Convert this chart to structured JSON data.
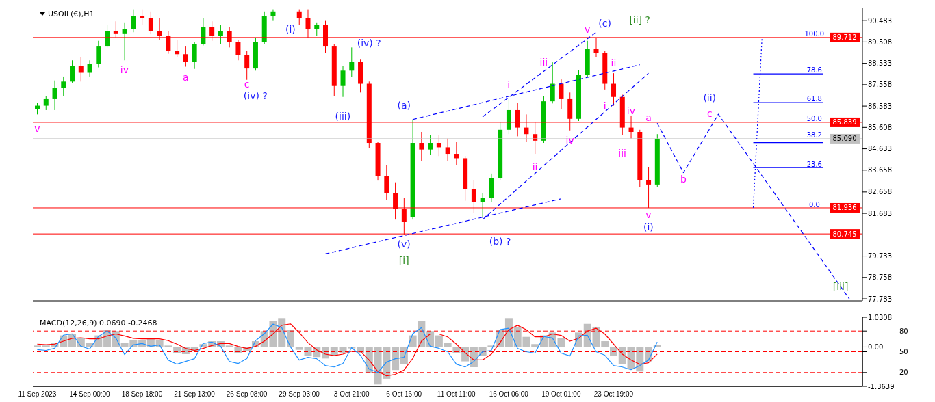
{
  "chart_data": [
    {
      "type": "candlestick",
      "title": "USOIL(€),H1",
      "tick_labels": "y",
      "categories": [
        null,
        null,
        null,
        null,
        null,
        null,
        null,
        null,
        null,
        null,
        null,
        null,
        null,
        null,
        null,
        null,
        null,
        null,
        null,
        null,
        null,
        null,
        null,
        null,
        null,
        null,
        null,
        null,
        null,
        null,
        null,
        null,
        null,
        null,
        null,
        null,
        null,
        null,
        null,
        null,
        null,
        null,
        null,
        null,
        null,
        null,
        null,
        null,
        null,
        null,
        null,
        null,
        null,
        null,
        null,
        null,
        null,
        null,
        null,
        null,
        null,
        null,
        null,
        null,
        null,
        null,
        null,
        null,
        null,
        null,
        null,
        null,
        null,
        null,
        null,
        null,
        null,
        null,
        null,
        null,
        null,
        null,
        null,
        null,
        null,
        null,
        null,
        null,
        null,
        null,
        null,
        null,
        null,
        null,
        null
      ],
      "ohlc": [
        [
          86.45,
          86.74,
          86.2,
          86.6
        ],
        [
          86.6,
          87.04,
          86.4,
          86.9
        ],
        [
          86.9,
          87.75,
          86.4,
          87.4
        ],
        [
          87.4,
          87.93,
          87.04,
          87.7
        ],
        [
          87.7,
          88.67,
          87.65,
          88.4
        ],
        [
          88.4,
          88.82,
          87.7,
          88.1
        ],
        [
          88.1,
          88.67,
          87.93,
          88.5
        ],
        [
          88.5,
          89.56,
          88.35,
          89.3
        ],
        [
          89.3,
          90.3,
          89.25,
          90.0
        ],
        [
          90.0,
          90.45,
          89.71,
          89.9
        ],
        [
          89.9,
          90.4,
          88.67,
          90.1
        ],
        [
          90.1,
          91.0,
          89.95,
          90.7
        ],
        [
          90.7,
          91.0,
          90.3,
          90.6
        ],
        [
          90.6,
          90.9,
          89.86,
          90.0
        ],
        [
          90.0,
          90.6,
          89.6,
          89.8
        ],
        [
          89.8,
          90.01,
          88.97,
          89.1
        ],
        [
          89.1,
          89.6,
          88.82,
          88.95
        ],
        [
          88.95,
          89.3,
          88.38,
          88.6
        ],
        [
          88.6,
          89.5,
          88.28,
          89.4
        ],
        [
          89.4,
          90.6,
          89.35,
          90.2
        ],
        [
          90.2,
          90.45,
          89.56,
          89.8
        ],
        [
          89.8,
          90.3,
          89.41,
          90.0
        ],
        [
          90.0,
          90.2,
          89.26,
          89.5
        ],
        [
          89.5,
          89.6,
          88.67,
          88.9
        ],
        [
          88.9,
          89.1,
          87.78,
          88.3
        ],
        [
          88.3,
          89.71,
          88.2,
          89.5
        ],
        [
          89.5,
          90.9,
          89.4,
          90.7
        ],
        [
          90.7,
          91.0,
          90.5,
          90.9
        ],
        null,
        null,
        [
          90.9,
          91.0,
          90.3,
          90.6
        ],
        [
          90.6,
          91.0,
          89.7,
          90.1
        ],
        [
          90.1,
          90.4,
          89.8,
          90.3
        ],
        [
          90.3,
          90.5,
          89.0,
          89.3
        ],
        [
          89.3,
          89.4,
          87.04,
          87.5
        ],
        [
          87.5,
          88.4,
          87.0,
          88.2
        ],
        [
          88.2,
          89.26,
          87.9,
          88.6
        ],
        [
          88.6,
          88.7,
          87.2,
          87.6
        ],
        [
          87.6,
          87.7,
          84.67,
          84.9
        ],
        [
          84.9,
          84.95,
          83.18,
          83.4
        ],
        [
          83.4,
          83.9,
          82.29,
          82.6
        ],
        [
          82.6,
          83.1,
          81.4,
          81.9
        ],
        [
          81.9,
          82.4,
          80.72,
          81.3
        ],
        [
          81.5,
          85.97,
          81.4,
          84.9
        ],
        [
          84.9,
          85.4,
          84.07,
          84.6
        ],
        [
          84.6,
          85.26,
          84.37,
          84.9
        ],
        [
          84.9,
          85.26,
          84.3,
          84.7
        ],
        [
          84.7,
          85.1,
          84.07,
          84.4
        ],
        [
          84.4,
          84.96,
          83.9,
          84.2
        ],
        [
          84.2,
          84.3,
          82.26,
          82.8
        ],
        [
          82.8,
          83.2,
          81.7,
          82.2
        ],
        [
          82.2,
          82.59,
          81.5,
          82.4
        ],
        [
          82.4,
          83.5,
          82.2,
          83.3
        ],
        [
          83.3,
          85.85,
          83.2,
          85.5
        ],
        [
          85.5,
          86.9,
          85.3,
          86.4
        ],
        [
          86.4,
          86.74,
          85.2,
          85.6
        ],
        [
          85.6,
          86.2,
          84.96,
          85.3
        ],
        [
          85.3,
          85.85,
          84.4,
          85.0
        ],
        [
          85.0,
          87.04,
          84.9,
          86.8
        ],
        [
          86.8,
          88.58,
          86.7,
          87.6
        ],
        [
          87.6,
          87.8,
          86.45,
          86.9
        ],
        [
          86.9,
          87.2,
          85.47,
          86.0
        ],
        [
          86.0,
          88.23,
          85.9,
          88.0
        ],
        [
          88.0,
          89.56,
          87.9,
          89.2
        ],
        [
          89.2,
          89.71,
          88.82,
          89.0
        ],
        [
          89.0,
          89.1,
          87.34,
          87.6
        ],
        [
          87.6,
          88.08,
          86.6,
          87.0
        ],
        [
          87.0,
          87.1,
          85.26,
          85.6
        ],
        [
          85.6,
          86.15,
          85.1,
          85.4
        ],
        [
          85.4,
          85.5,
          82.89,
          83.2
        ],
        [
          83.2,
          83.8,
          81.936,
          83.0
        ],
        [
          83.0,
          85.3,
          82.9,
          85.09
        ],
        null,
        null,
        null,
        null,
        null,
        null,
        null,
        null,
        null,
        null,
        null,
        null,
        null,
        null,
        null,
        null,
        null,
        null,
        null,
        null,
        null,
        null,
        null
      ],
      "colors": [
        "#00c000",
        "#00c000",
        "#00c000",
        "#00c000",
        "#00c000",
        "#ff0000",
        "#00c000",
        "#00c000",
        "#00c000",
        "#ff0000",
        "#00c000",
        "#00c000",
        "#ff0000",
        "#ff0000",
        "#ff0000",
        "#ff0000",
        "#ff0000",
        "#ff0000",
        "#00c000",
        "#00c000",
        "#ff0000",
        "#00c000",
        "#ff0000",
        "#ff0000",
        "#ff0000",
        "#00c000",
        "#00c000",
        "#00c000",
        null,
        null,
        "#ff0000",
        "#ff0000",
        "#00c000",
        "#ff0000",
        "#ff0000",
        "#00c000",
        "#00c000",
        "#ff0000",
        "#ff0000",
        "#ff0000",
        "#ff0000",
        "#ff0000",
        "#ff0000",
        "#00c000",
        "#ff0000",
        "#00c000",
        "#ff0000",
        "#ff0000",
        "#ff0000",
        "#ff0000",
        "#ff0000",
        "#00c000",
        "#00c000",
        "#00c000",
        "#00c000",
        "#ff0000",
        "#ff0000",
        "#ff0000",
        "#00c000",
        "#00c000",
        "#ff0000",
        "#ff0000",
        "#00c000",
        "#00c000",
        "#ff0000",
        "#ff0000",
        "#ff0000",
        "#ff0000",
        "#ff0000",
        "#ff0000",
        "#ff0000",
        "#00c000",
        null,
        null,
        null,
        null,
        null,
        null,
        null,
        null,
        null,
        null,
        null,
        null,
        null,
        null,
        null,
        null,
        null,
        null,
        null,
        null,
        null,
        null,
        null
      ],
      "series": [
        {
          "type": "line",
          "color": "#0000ff",
          "line_style": "dashed",
          "values": [
            null,
            null,
            null,
            null,
            null,
            null,
            null,
            null,
            null,
            null,
            null,
            null,
            null,
            null,
            null,
            null,
            null,
            null,
            null,
            null,
            null,
            null,
            null,
            null,
            null,
            null,
            null,
            null,
            null,
            null,
            null,
            null,
            null,
            79.83,
            null,
            null,
            null,
            null,
            null,
            null,
            null,
            null,
            null,
            null,
            null,
            null,
            null,
            null,
            null,
            null,
            null,
            null,
            null,
            null,
            null,
            null,
            null,
            null,
            null,
            null,
            82.35,
            null,
            null,
            null,
            null,
            null,
            null,
            null,
            null,
            null,
            null,
            null,
            null,
            null,
            null,
            null,
            null,
            null,
            null,
            null,
            null,
            null,
            null,
            null,
            null,
            null,
            null,
            null,
            null,
            null,
            null,
            null,
            null,
            null,
            null
          ]
        },
        {
          "type": "line",
          "color": "#0000ff",
          "line_style": "dashed",
          "values": [
            null,
            null,
            null,
            null,
            null,
            null,
            null,
            null,
            null,
            null,
            null,
            null,
            null,
            null,
            null,
            null,
            null,
            null,
            null,
            null,
            null,
            null,
            null,
            null,
            null,
            null,
            null,
            null,
            null,
            null,
            null,
            null,
            null,
            null,
            null,
            null,
            null,
            null,
            null,
            null,
            null,
            null,
            null,
            85.97,
            null,
            null,
            null,
            null,
            null,
            null,
            null,
            null,
            null,
            null,
            null,
            null,
            null,
            null,
            null,
            null,
            null,
            null,
            null,
            null,
            null,
            null,
            null,
            null,
            null,
            88.47,
            null,
            null,
            null,
            null,
            null,
            null,
            null,
            null,
            null,
            null,
            null,
            null,
            null,
            null,
            null,
            null,
            null,
            null,
            null,
            null,
            null,
            null,
            null,
            null,
            null
          ]
        },
        {
          "type": "line",
          "color": "#0000ff",
          "line_style": "dashed",
          "values": [
            null,
            null,
            null,
            null,
            null,
            null,
            null,
            null,
            null,
            null,
            null,
            null,
            null,
            null,
            null,
            null,
            null,
            null,
            null,
            null,
            null,
            null,
            null,
            null,
            null,
            null,
            null,
            null,
            null,
            null,
            null,
            null,
            null,
            null,
            null,
            null,
            null,
            null,
            null,
            null,
            null,
            null,
            null,
            null,
            null,
            null,
            null,
            null,
            null,
            null,
            null,
            81.4,
            null,
            null,
            null,
            null,
            null,
            null,
            null,
            null,
            null,
            null,
            null,
            null,
            null,
            null,
            null,
            null,
            null,
            null,
            88.08,
            null,
            null,
            null,
            null,
            null,
            null,
            null,
            null,
            null,
            null,
            null,
            null,
            null,
            null,
            null,
            null,
            null,
            null,
            null,
            null,
            null,
            null,
            null,
            null
          ]
        },
        {
          "type": "line",
          "color": "#0000ff",
          "line_style": "dashed",
          "values": [
            null,
            null,
            null,
            null,
            null,
            null,
            null,
            null,
            null,
            null,
            null,
            null,
            null,
            null,
            null,
            null,
            null,
            null,
            null,
            null,
            null,
            null,
            null,
            null,
            null,
            null,
            null,
            null,
            null,
            null,
            null,
            null,
            null,
            null,
            null,
            null,
            null,
            null,
            null,
            null,
            null,
            null,
            null,
            null,
            null,
            null,
            null,
            null,
            null,
            null,
            null,
            86.09,
            null,
            null,
            null,
            null,
            null,
            null,
            null,
            null,
            null,
            null,
            null,
            null,
            89.95,
            null,
            null,
            null,
            null,
            null,
            null,
            null,
            null,
            null,
            null,
            null,
            null,
            null,
            null,
            null,
            null,
            null,
            null,
            null,
            null,
            null,
            null,
            null,
            null,
            null,
            null,
            null,
            null,
            null,
            null
          ]
        },
        {
          "type": "line",
          "color": "#0000ff",
          "line_style": "dashed",
          "values": [
            null,
            null,
            null,
            null,
            null,
            null,
            null,
            null,
            null,
            null,
            null,
            null,
            null,
            null,
            null,
            null,
            null,
            null,
            null,
            null,
            null,
            null,
            null,
            null,
            null,
            null,
            null,
            null,
            null,
            null,
            null,
            null,
            null,
            null,
            null,
            null,
            null,
            null,
            null,
            null,
            null,
            null,
            null,
            null,
            null,
            null,
            null,
            null,
            null,
            null,
            null,
            null,
            null,
            null,
            null,
            null,
            null,
            null,
            null,
            null,
            null,
            null,
            null,
            null,
            null,
            null,
            null,
            null,
            null,
            null,
            null,
            85.8,
            null,
            null,
            83.54,
            null,
            null,
            null,
            86.21,
            null,
            null,
            null,
            null,
            null,
            null,
            null,
            null,
            null,
            null,
            null,
            null,
            null,
            null,
            77.78,
            null
          ]
        },
        {
          "type": "line",
          "color": "#0000ff",
          "line_style": "dotted",
          "values": [
            null,
            null,
            null,
            null,
            null,
            null,
            null,
            null,
            null,
            null,
            null,
            null,
            null,
            null,
            null,
            null,
            null,
            null,
            null,
            null,
            null,
            null,
            null,
            null,
            null,
            null,
            null,
            null,
            null,
            null,
            null,
            null,
            null,
            null,
            null,
            null,
            null,
            null,
            null,
            null,
            null,
            null,
            null,
            null,
            null,
            null,
            null,
            null,
            null,
            null,
            null,
            null,
            null,
            null,
            null,
            null,
            null,
            null,
            null,
            null,
            null,
            null,
            null,
            null,
            null,
            null,
            null,
            null,
            null,
            null,
            null,
            null,
            null,
            null,
            null,
            null,
            null,
            null,
            null,
            null,
            null,
            null,
            81.94,
            89.71,
            null,
            null,
            null,
            null,
            null,
            null,
            null,
            null,
            null,
            null,
            null
          ]
        },
        {
          "type": "line",
          "color": "#0000ff",
          "line_style": "solid",
          "values": [
            null,
            null,
            null,
            null,
            null,
            null,
            null,
            null,
            null,
            null,
            null,
            null,
            null,
            null,
            null,
            null,
            null,
            null,
            null,
            null,
            null,
            null,
            null,
            null,
            null,
            null,
            null,
            null,
            null,
            null,
            null,
            null,
            null,
            null,
            null,
            null,
            null,
            null,
            null,
            null,
            null,
            null,
            null,
            null,
            null,
            null,
            null,
            null,
            null,
            null,
            null,
            null,
            null,
            null,
            null,
            null,
            null,
            null,
            null,
            null,
            null,
            null,
            null,
            null,
            null,
            null,
            null,
            null,
            null,
            null,
            null,
            null,
            null,
            null,
            null,
            null,
            null,
            null,
            null,
            null,
            null,
            null,
            88.05,
            null,
            null,
            null,
            null,
            null,
            null,
            null,
            88.05,
            null,
            null,
            null,
            null
          ]
        },
        {
          "type": "line",
          "color": "#0000ff",
          "line_style": "solid",
          "values": [
            null,
            null,
            null,
            null,
            null,
            null,
            null,
            null,
            null,
            null,
            null,
            null,
            null,
            null,
            null,
            null,
            null,
            null,
            null,
            null,
            null,
            null,
            null,
            null,
            null,
            null,
            null,
            null,
            null,
            null,
            null,
            null,
            null,
            null,
            null,
            null,
            null,
            null,
            null,
            null,
            null,
            null,
            null,
            null,
            null,
            null,
            null,
            null,
            null,
            null,
            null,
            null,
            null,
            null,
            null,
            null,
            null,
            null,
            null,
            null,
            null,
            null,
            null,
            null,
            null,
            null,
            null,
            null,
            null,
            null,
            null,
            null,
            null,
            null,
            null,
            null,
            null,
            null,
            null,
            null,
            null,
            null,
            86.74,
            null,
            null,
            null,
            null,
            null,
            null,
            null,
            86.74,
            null,
            null,
            null,
            null
          ]
        },
        {
          "type": "line",
          "color": "#0000ff",
          "line_style": "solid",
          "values": [
            null,
            null,
            null,
            null,
            null,
            null,
            null,
            null,
            null,
            null,
            null,
            null,
            null,
            null,
            null,
            null,
            null,
            null,
            null,
            null,
            null,
            null,
            null,
            null,
            null,
            null,
            null,
            null,
            null,
            null,
            null,
            null,
            null,
            null,
            null,
            null,
            null,
            null,
            null,
            null,
            null,
            null,
            null,
            null,
            null,
            null,
            null,
            null,
            null,
            null,
            null,
            null,
            null,
            null,
            null,
            null,
            null,
            null,
            null,
            null,
            null,
            null,
            null,
            null,
            null,
            null,
            null,
            null,
            null,
            null,
            null,
            null,
            null,
            null,
            null,
            null,
            null,
            null,
            null,
            null,
            null,
            null,
            84.91,
            null,
            null,
            null,
            null,
            null,
            null,
            null,
            84.91,
            null,
            null,
            null,
            null
          ]
        },
        {
          "type": "line",
          "color": "#0000ff",
          "line_style": "solid",
          "values": [
            null,
            null,
            null,
            null,
            null,
            null,
            null,
            null,
            null,
            null,
            null,
            null,
            null,
            null,
            null,
            null,
            null,
            null,
            null,
            null,
            null,
            null,
            null,
            null,
            null,
            null,
            null,
            null,
            null,
            null,
            null,
            null,
            null,
            null,
            null,
            null,
            null,
            null,
            null,
            null,
            null,
            null,
            null,
            null,
            null,
            null,
            null,
            null,
            null,
            null,
            null,
            null,
            null,
            null,
            null,
            null,
            null,
            null,
            null,
            null,
            null,
            null,
            null,
            null,
            null,
            null,
            null,
            null,
            null,
            null,
            null,
            null,
            null,
            null,
            null,
            null,
            null,
            null,
            null,
            null,
            null,
            null,
            83.77,
            null,
            null,
            null,
            null,
            null,
            null,
            null,
            83.77,
            null,
            null,
            null,
            null
          ]
        }
      ],
      "ylim": [
        77.69,
        91.05
      ],
      "yticks": [
        90.483,
        89.508,
        88.533,
        87.558,
        86.583,
        85.608,
        84.633,
        83.658,
        82.658,
        81.683,
        79.733,
        78.758,
        77.783
      ],
      "ref_lines": [
        {
          "axis": "y",
          "value": 89.712,
          "label": "89.712",
          "color": "#ff0000"
        },
        {
          "axis": "y",
          "value": 85.839,
          "label": "85.839",
          "color": "#ff0000"
        },
        {
          "axis": "y",
          "value": 81.936,
          "label": "81.936",
          "color": "#ff0000"
        },
        {
          "axis": "y",
          "value": 80.745,
          "label": "80.745",
          "color": "#ff0000"
        },
        {
          "axis": "y",
          "value": 85.09,
          "label": "85.090",
          "color": "#c0c0c0"
        }
      ],
      "annotations": [
        "v",
        "iv",
        "a",
        "c",
        "(iv) ?",
        "(i)",
        "(iv) ?",
        "(iii)",
        "(a)",
        "(v)",
        "[i]",
        "i",
        "iii",
        "ii",
        "iv",
        "(b) ?",
        "v",
        "(c)",
        "[ii] ?",
        "ii",
        "i",
        "iv",
        "iii",
        "a",
        "v",
        "(i)",
        "b",
        "c",
        "(ii)",
        "[iii]",
        "100.0",
        "78.6",
        "61.8",
        "50.0",
        "38.2",
        "23.6",
        "0.0"
      ]
    },
    {
      "type": "bar",
      "title": "MACD(12,26,9) 0.0690 -0.2468",
      "categories": [
        "11 Sep 2023",
        null,
        null,
        null,
        null,
        null,
        "14 Sep 00:00",
        null,
        null,
        null,
        null,
        null,
        "18 Sep 18:00",
        null,
        null,
        null,
        null,
        null,
        "21 Sep 13:00",
        null,
        null,
        null,
        null,
        null,
        "26 Sep 08:00",
        null,
        null,
        null,
        null,
        null,
        "29 Sep 03:00",
        null,
        null,
        null,
        null,
        null,
        "3 Oct 21:00",
        null,
        null,
        null,
        null,
        null,
        "6 Oct 16:00",
        null,
        null,
        null,
        null,
        null,
        "11 Oct 11:00",
        null,
        null,
        null,
        null,
        null,
        "16 Oct 06:00",
        null,
        null,
        null,
        null,
        null,
        "19 Oct 01:00",
        null,
        null,
        null,
        null,
        null,
        "23 Oct 19:00",
        null,
        null,
        null,
        null,
        null,
        null,
        null,
        null,
        null,
        null,
        null,
        null,
        null,
        null,
        null,
        null,
        null,
        null,
        null,
        null,
        null,
        null,
        null,
        null,
        null,
        null,
        null,
        null
      ],
      "series": [
        {
          "type": "bar",
          "color": "#c0c0c0",
          "values": [
            0.05,
            0.05,
            0.15,
            0.4,
            0.45,
            0.3,
            0.15,
            0.4,
            0.6,
            0.55,
            0.15,
            0.25,
            0.25,
            0.3,
            0.25,
            0.05,
            -0.2,
            -0.25,
            -0.15,
            0.1,
            0.2,
            0.2,
            0.05,
            -0.2,
            -0.15,
            0.2,
            0.55,
            0.9,
            1.0,
            0.6,
            -0.1,
            -0.3,
            -0.35,
            -0.4,
            -0.3,
            -0.2,
            -0.05,
            -0.2,
            -0.9,
            -1.3,
            -1.1,
            -0.8,
            -0.6,
            0.4,
            0.9,
            0.55,
            0.4,
            0.15,
            -0.2,
            -0.5,
            -0.7,
            -0.3,
            0.05,
            0.6,
            1.0,
            0.7,
            0.35,
            0.1,
            0.4,
            0.5,
            0.3,
            0.0,
            0.5,
            0.8,
            0.7,
            0.2,
            -0.3,
            -0.6,
            -0.75,
            -0.85,
            -0.5,
            0.069,
            null,
            null,
            null,
            null,
            null,
            null,
            null,
            null,
            null,
            null,
            null,
            null,
            null,
            null,
            null,
            null,
            null,
            null,
            null,
            null,
            null,
            null,
            null
          ]
        },
        {
          "type": "line",
          "color": "#ff0000",
          "values": [
            0.1,
            0.08,
            0.1,
            0.2,
            0.3,
            0.32,
            0.28,
            0.28,
            0.38,
            0.45,
            0.38,
            0.3,
            0.28,
            0.28,
            0.28,
            0.22,
            0.1,
            -0.05,
            -0.12,
            -0.05,
            0.05,
            0.12,
            0.12,
            0.02,
            -0.05,
            0.02,
            0.2,
            0.45,
            0.75,
            0.8,
            0.5,
            0.15,
            -0.1,
            -0.25,
            -0.3,
            -0.25,
            -0.15,
            -0.15,
            -0.45,
            -0.85,
            -1.0,
            -0.95,
            -0.8,
            -0.4,
            0.2,
            0.45,
            0.45,
            0.35,
            0.1,
            -0.2,
            -0.45,
            -0.45,
            -0.25,
            0.15,
            0.6,
            0.75,
            0.6,
            0.35,
            0.35,
            0.45,
            0.4,
            0.2,
            0.3,
            0.55,
            0.65,
            0.45,
            0.1,
            -0.25,
            -0.45,
            -0.6,
            -0.55,
            -0.2468,
            null,
            null,
            null,
            null,
            null,
            null,
            null,
            null,
            null,
            null,
            null,
            null,
            null,
            null,
            null,
            null,
            null,
            null,
            null,
            null,
            null,
            null,
            null
          ]
        }
      ],
      "ylim": [
        -1.3639,
        1.0308
      ],
      "yticks": [
        1.0308,
        {
          "value": 0,
          "label": "0.00"
        },
        -1.3639
      ]
    },
    {
      "type": "line",
      "tick_labels": "y",
      "categories": [
        null,
        null,
        null,
        null,
        null,
        null,
        null,
        null,
        null,
        null,
        null,
        null,
        null,
        null,
        null,
        null,
        null,
        null,
        null,
        null,
        null,
        null,
        null,
        null,
        null,
        null,
        null,
        null,
        null,
        null,
        null,
        null,
        null,
        null,
        null,
        null,
        null,
        null,
        null,
        null,
        null,
        null,
        null,
        null,
        null,
        null,
        null,
        null,
        null,
        null,
        null,
        null,
        null,
        null,
        null,
        null,
        null,
        null,
        null,
        null,
        null,
        null,
        null,
        null,
        null,
        null,
        null,
        null,
        null,
        null,
        null,
        null,
        null,
        null,
        null,
        null,
        null,
        null,
        null,
        null,
        null,
        null,
        null,
        null,
        null,
        null,
        null,
        null,
        null,
        null,
        null,
        null,
        null,
        null,
        null
      ],
      "series": [
        {
          "type": "line",
          "color": "#1e90ff",
          "values": [
            53,
            52,
            55,
            74,
            76,
            58,
            54,
            72,
            80,
            70,
            46,
            60,
            62,
            58,
            60,
            38,
            32,
            36,
            40,
            62,
            64,
            58,
            36,
            33,
            40,
            66,
            76,
            90,
            85,
            57,
            38,
            42,
            40,
            30,
            28,
            33,
            56,
            45,
            25,
            20,
            35,
            40,
            42,
            76,
            85,
            58,
            55,
            50,
            32,
            28,
            36,
            50,
            52,
            82,
            84,
            55,
            50,
            48,
            72,
            70,
            48,
            44,
            73,
            74,
            50,
            45,
            30,
            28,
            24,
            30,
            38,
            64,
            null,
            null,
            null,
            null,
            null,
            null,
            null,
            null,
            null,
            null,
            null,
            null,
            null,
            null,
            null,
            null,
            null,
            null,
            null,
            null,
            null,
            null,
            null
          ]
        }
      ],
      "ylim": [
        0,
        100
      ],
      "yticks": [
        20,
        50,
        80
      ],
      "ref_lines": [
        {
          "axis": "y",
          "value": 80,
          "color": "#ff0000",
          "line_style": "dashed"
        },
        {
          "axis": "y",
          "value": 50,
          "color": "#ff0000",
          "line_style": "dashed"
        },
        {
          "axis": "y",
          "value": 20,
          "color": "#ff0000",
          "line_style": "dashed"
        }
      ]
    }
  ]
}
